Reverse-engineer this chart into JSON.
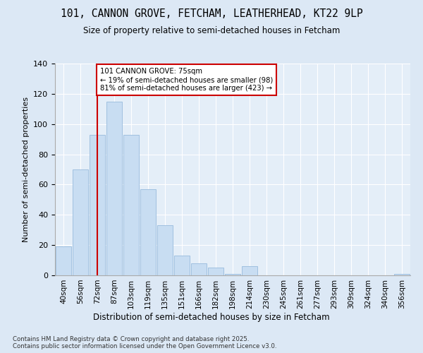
{
  "title1": "101, CANNON GROVE, FETCHAM, LEATHERHEAD, KT22 9LP",
  "title2": "Size of property relative to semi-detached houses in Fetcham",
  "xlabel": "Distribution of semi-detached houses by size in Fetcham",
  "ylabel": "Number of semi-detached properties",
  "categories": [
    "40sqm",
    "56sqm",
    "72sqm",
    "87sqm",
    "103sqm",
    "119sqm",
    "135sqm",
    "151sqm",
    "166sqm",
    "182sqm",
    "198sqm",
    "214sqm",
    "230sqm",
    "245sqm",
    "261sqm",
    "277sqm",
    "293sqm",
    "309sqm",
    "324sqm",
    "340sqm",
    "356sqm"
  ],
  "values": [
    19,
    70,
    93,
    115,
    93,
    57,
    33,
    13,
    8,
    5,
    1,
    6,
    0,
    0,
    0,
    0,
    0,
    0,
    0,
    0,
    1
  ],
  "bar_color": "#c8ddf2",
  "bar_edge_color": "#a0c0e0",
  "red_line_color": "#cc0000",
  "red_line_x": 2.0,
  "property_label": "101 CANNON GROVE: 75sqm",
  "pct_smaller": 19,
  "count_smaller": 98,
  "pct_larger": 81,
  "count_larger": 423,
  "annotation_box_color": "#ffffff",
  "annotation_box_edge": "#cc0000",
  "ylim": [
    0,
    140
  ],
  "yticks": [
    0,
    20,
    40,
    60,
    80,
    100,
    120,
    140
  ],
  "footer": "Contains HM Land Registry data © Crown copyright and database right 2025.\nContains public sector information licensed under the Open Government Licence v3.0.",
  "bg_color": "#dce8f5",
  "plot_bg_color": "#e4eef8"
}
